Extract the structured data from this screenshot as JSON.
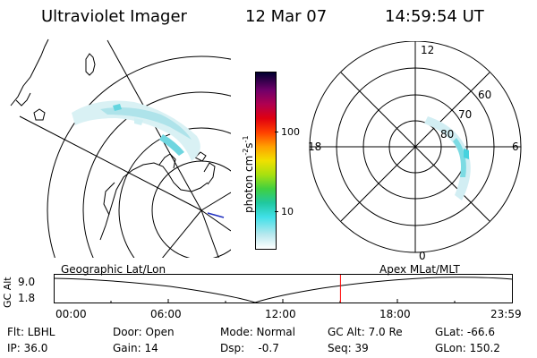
{
  "header": {
    "title": "Ultraviolet Imager",
    "date": "12 Mar 07",
    "time": "14:59:54 UT"
  },
  "colorbar": {
    "label_base": "photon cm",
    "label_exp1": "-2",
    "label_s": "s",
    "label_exp2": "-1",
    "tick_top": "100",
    "tick_bottom": "10"
  },
  "polar_plot": {
    "label_top": "12",
    "label_left": "18",
    "label_right": "6",
    "label_bottom": "0",
    "lat_labels": [
      "60",
      "70",
      "80"
    ]
  },
  "timeline": {
    "label_left": "Geographic Lat/Lon",
    "label_right": "Apex MLat/MLT",
    "axis_label": "GC Alt",
    "y_max": "9.0",
    "y_min": "1.8",
    "ticks": [
      "00:00",
      "06:00",
      "12:00",
      "18:00",
      "23:59"
    ],
    "current_time_fraction": 0.625,
    "marker_color": "#ff0000"
  },
  "footer": {
    "flt": "Flt: LBHL",
    "ip": "IP: 36.0",
    "door": "Door: Open",
    "gain": "Gain: 14",
    "mode": "Mode: Normal",
    "dsp": "Dsp:    -0.7",
    "gc_alt": "GC Alt: 7.0 Re",
    "seq": "Seq: 39",
    "glat": "GLat: -66.6",
    "glon": "GLon: 150.2"
  }
}
